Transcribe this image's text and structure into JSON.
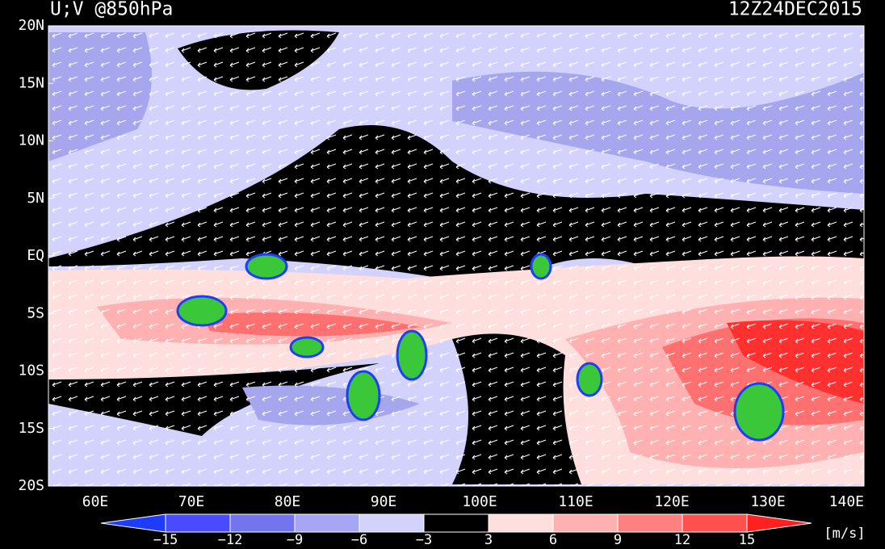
{
  "header": {
    "title": "U;V @850hPa",
    "time": "12Z24DEC2015"
  },
  "axes": {
    "lat_labels": [
      "20N",
      "15N",
      "10N",
      "5N",
      "EQ",
      "5S",
      "10S",
      "15S",
      "20S"
    ],
    "lon_labels": [
      "60E",
      "70E",
      "80E",
      "90E",
      "100E",
      "110E",
      "120E",
      "130E",
      "140E"
    ]
  },
  "colorbar": {
    "labels": [
      "−15",
      "−12",
      "−9",
      "−6",
      "−3",
      "3",
      "6",
      "9",
      "12",
      "15"
    ],
    "unit": "[m/s]"
  }
}
